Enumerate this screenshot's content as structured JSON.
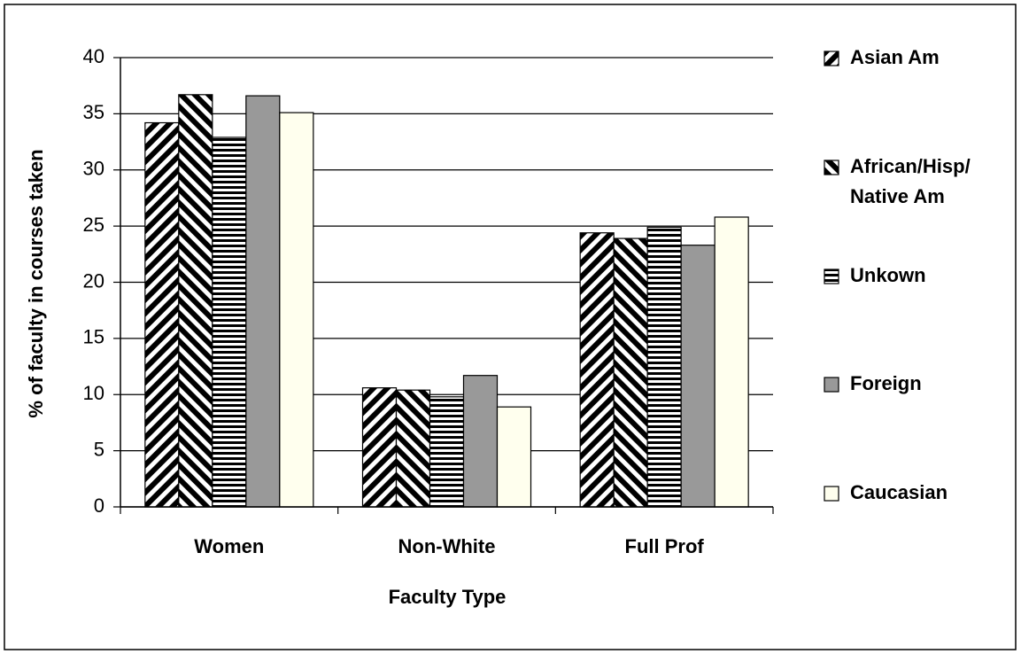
{
  "chart_data": {
    "type": "bar",
    "x_label": "Faculty Type",
    "y_label": "% of faculty in courses taken",
    "categories": [
      "Women",
      "Non-White",
      "Full Prof"
    ],
    "series": [
      {
        "name": "Asian Am",
        "color": "#000000",
        "pattern": "diagonal-up",
        "values": [
          34.2,
          10.6,
          24.4
        ]
      },
      {
        "name": "African/Hisp/ Native Am",
        "color": "#000000",
        "pattern": "diagonal-down",
        "values": [
          36.7,
          10.4,
          23.9
        ]
      },
      {
        "name": "Unkown",
        "color": "#000000",
        "pattern": "horizontal",
        "values": [
          32.9,
          9.8,
          24.9
        ]
      },
      {
        "name": "Foreign",
        "color": "#999999",
        "pattern": "solid",
        "values": [
          36.6,
          11.7,
          23.3
        ]
      },
      {
        "name": "Caucasian",
        "color": "#ffffee",
        "pattern": "solid",
        "values": [
          35.1,
          8.9,
          25.8
        ]
      }
    ],
    "ylim": [
      0,
      40
    ],
    "yticks": [
      0,
      5,
      10,
      15,
      20,
      25,
      30,
      35,
      40
    ],
    "grid": true,
    "legend": "right"
  }
}
